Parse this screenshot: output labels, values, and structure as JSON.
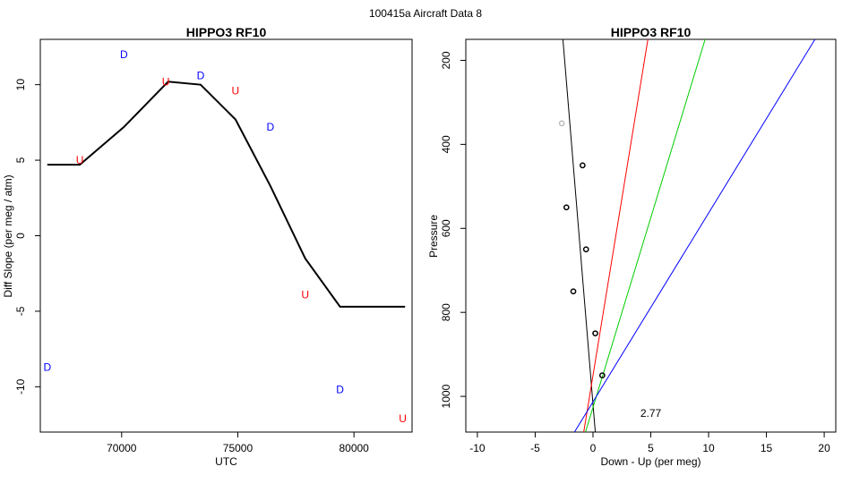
{
  "page_title": "100415a   Aircraft Data 8",
  "chart_data": [
    {
      "type": "line",
      "title": "HIPPO3 RF10",
      "xlabel": "UTC",
      "ylabel": "Diff Slope (per meg / atm)",
      "xlim": [
        66500,
        82500
      ],
      "ylim": [
        -13,
        13
      ],
      "xticks": [
        70000,
        75000,
        80000
      ],
      "yticks": [
        -10,
        -5,
        0,
        5,
        10
      ],
      "series": [
        {
          "name": "smoothed",
          "color": "#000000",
          "x": [
            66800,
            68200,
            70100,
            72000,
            73400,
            74900,
            76400,
            77900,
            79400,
            82200
          ],
          "y": [
            4.7,
            4.7,
            7.2,
            10.2,
            10.0,
            7.7,
            3.3,
            -1.5,
            -4.7,
            -4.7
          ]
        }
      ],
      "markers": [
        {
          "label": "D",
          "x": 66800,
          "y": -8.7,
          "color": "#0000ff"
        },
        {
          "label": "U",
          "x": 68200,
          "y": 5.0,
          "color": "#ff0000"
        },
        {
          "label": "D",
          "x": 70100,
          "y": 12.0,
          "color": "#0000ff"
        },
        {
          "label": "U",
          "x": 71900,
          "y": 10.2,
          "color": "#ff0000"
        },
        {
          "label": "D",
          "x": 73400,
          "y": 10.6,
          "color": "#0000ff"
        },
        {
          "label": "U",
          "x": 74900,
          "y": 9.6,
          "color": "#ff0000"
        },
        {
          "label": "D",
          "x": 76400,
          "y": 7.2,
          "color": "#0000ff"
        },
        {
          "label": "U",
          "x": 77900,
          "y": -3.9,
          "color": "#ff0000"
        },
        {
          "label": "D",
          "x": 79400,
          "y": -10.2,
          "color": "#0000ff"
        },
        {
          "label": "U",
          "x": 82100,
          "y": -12.1,
          "color": "#ff0000"
        }
      ]
    },
    {
      "type": "scatter",
      "title": "HIPPO3 RF10",
      "xlabel": "Down - Up (per meg)",
      "ylabel": "Pressure",
      "xlim": [
        -11,
        21
      ],
      "ylim": [
        1085,
        150
      ],
      "y_reversed": true,
      "xticks": [
        -10,
        -5,
        0,
        5,
        10,
        15,
        20
      ],
      "yticks": [
        200,
        400,
        600,
        800,
        1000
      ],
      "annotation": {
        "text": "2.77",
        "x": 5,
        "y": 1040
      },
      "points": [
        {
          "x": -2.7,
          "y": 350,
          "color": "#bbbbbb"
        },
        {
          "x": -0.9,
          "y": 450,
          "color": "#000000"
        },
        {
          "x": -2.3,
          "y": 550,
          "color": "#000000"
        },
        {
          "x": -0.6,
          "y": 650,
          "color": "#000000"
        },
        {
          "x": -1.7,
          "y": 750,
          "color": "#000000"
        },
        {
          "x": 0.2,
          "y": 850,
          "color": "#000000"
        },
        {
          "x": 0.8,
          "y": 950,
          "color": "#000000"
        }
      ],
      "lines": [
        {
          "name": "black",
          "color": "#000000",
          "x": [
            -2.6,
            0.2
          ],
          "y": [
            150,
            1085
          ]
        },
        {
          "name": "red",
          "color": "#ff0000",
          "x": [
            4.75,
            -0.8
          ],
          "y": [
            150,
            1085
          ]
        },
        {
          "name": "green",
          "color": "#00cc00",
          "x": [
            9.7,
            -0.65
          ],
          "y": [
            150,
            1085
          ]
        },
        {
          "name": "blue",
          "color": "#0000ff",
          "x": [
            19.2,
            -1.6
          ],
          "y": [
            150,
            1085
          ]
        }
      ]
    }
  ]
}
